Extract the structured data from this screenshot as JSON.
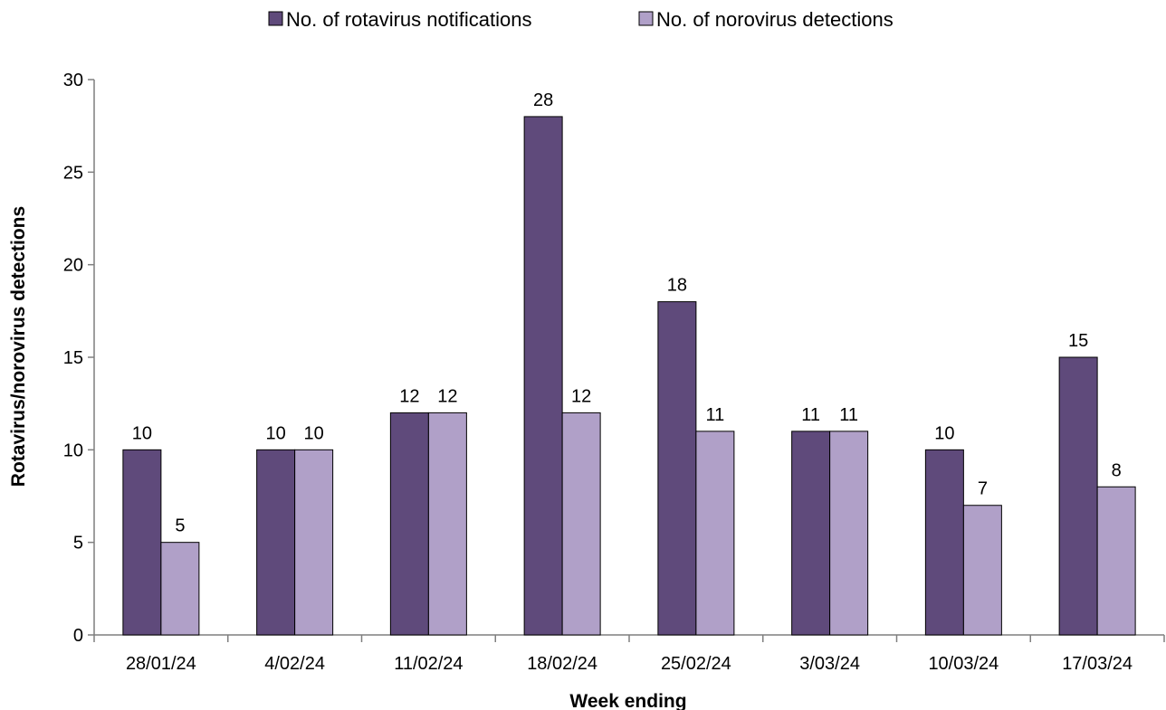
{
  "chart_data": {
    "type": "bar",
    "categories": [
      "28/01/24",
      "4/02/24",
      "11/02/24",
      "18/02/24",
      "25/02/24",
      "3/03/24",
      "10/03/24",
      "17/03/24"
    ],
    "series": [
      {
        "name": "No. of rotavirus notifications",
        "values": [
          10,
          10,
          12,
          28,
          18,
          11,
          10,
          15
        ],
        "color": "#5f4a7b"
      },
      {
        "name": "No. of norovirus detections",
        "values": [
          5,
          10,
          12,
          12,
          11,
          11,
          7,
          8
        ],
        "color": "#b0a0c8"
      }
    ],
    "title": "",
    "xlabel": "Week ending",
    "ylabel": "Rotavirus/norovirus  detections",
    "ylim": [
      0,
      30
    ],
    "yticks": [
      0,
      5,
      10,
      15,
      20,
      25,
      30
    ],
    "grid": false,
    "legend_position": "top-center",
    "data_labels": true
  }
}
